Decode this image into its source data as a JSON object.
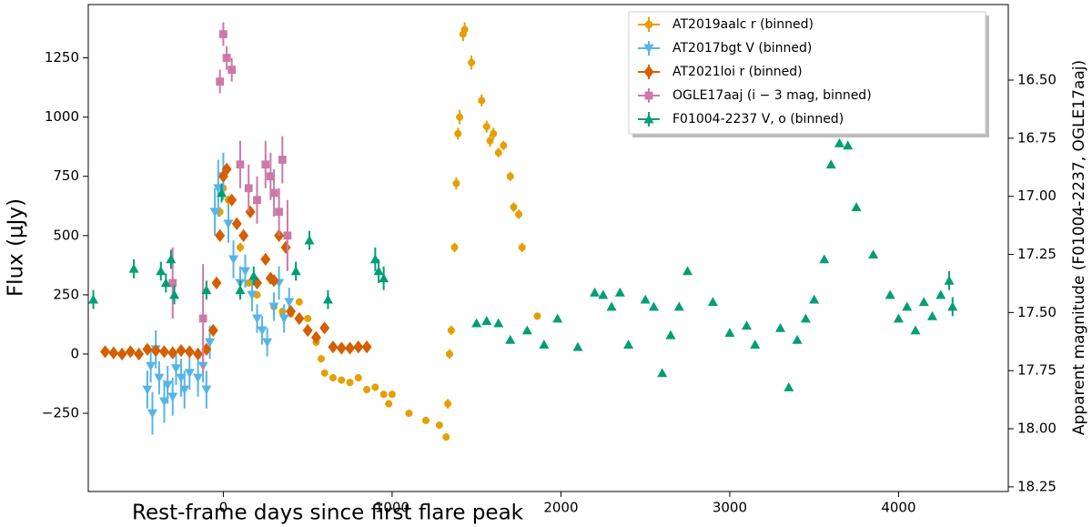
{
  "chart_data": {
    "type": "scatter",
    "x_label": "Rest-frame days since first flare peak",
    "y_label": "Flux (μJy)",
    "y2_label": "Apparent magnitude (F01004-2237, OGLE17aaj)",
    "xlim": [
      -800,
      4650
    ],
    "xticks": [
      0,
      1000,
      2000,
      3000,
      4000
    ],
    "ylim": [
      -580,
      1475
    ],
    "yticks": [
      {
        "value": -250,
        "label": "−250"
      },
      0,
      250,
      500,
      750,
      1000,
      1250
    ],
    "y2lim": [
      18.27,
      16.175
    ],
    "y2ticks": [
      {
        "value": 16.5,
        "label": "16.50"
      },
      16.75,
      {
        "value": 17,
        "label": "17.00"
      },
      17.25,
      {
        "value": 17.5,
        "label": "17.50"
      },
      17.75,
      {
        "value": 18,
        "label": "18.00"
      },
      18.25
    ],
    "legend": "upper right",
    "series": [
      {
        "name": "AT2019aalc r (binned)",
        "color": "#E69F00",
        "marker": "circle",
        "x": [
          -20,
          0,
          30,
          100,
          150,
          200,
          300,
          350,
          400,
          450,
          500,
          550,
          580,
          600,
          650,
          700,
          750,
          800,
          850,
          900,
          950,
          980,
          1000,
          1100,
          1200,
          1280,
          1320,
          1330,
          1340,
          1350,
          1370,
          1380,
          1390,
          1400,
          1420,
          1430,
          1470,
          1530,
          1560,
          1580,
          1600,
          1630,
          1660,
          1700,
          1720,
          1750,
          1770,
          1860
        ],
        "values": [
          600,
          700,
          650,
          450,
          300,
          250,
          200,
          180,
          170,
          220,
          150,
          50,
          -20,
          -80,
          -100,
          -110,
          -120,
          -100,
          -150,
          -140,
          -170,
          -210,
          -170,
          -250,
          -280,
          -300,
          -350,
          -210,
          0,
          100,
          450,
          720,
          930,
          1000,
          1350,
          1370,
          1230,
          1070,
          960,
          900,
          930,
          850,
          880,
          750,
          620,
          590,
          450,
          160
        ],
        "errors": [
          20,
          20,
          20,
          20,
          15,
          15,
          15,
          15,
          15,
          15,
          15,
          15,
          15,
          15,
          15,
          15,
          15,
          15,
          15,
          15,
          15,
          15,
          15,
          15,
          15,
          15,
          15,
          20,
          20,
          20,
          20,
          25,
          25,
          30,
          30,
          30,
          30,
          25,
          25,
          25,
          25,
          20,
          20,
          20,
          20,
          20,
          20,
          15
        ]
      },
      {
        "name": "AT2017bgt V (binned)",
        "color": "#56B4E9",
        "marker": "triangle-down",
        "x": [
          -450,
          -430,
          -420,
          -400,
          -380,
          -350,
          -330,
          -300,
          -280,
          -250,
          -230,
          -200,
          -150,
          -120,
          -100,
          -80,
          -50,
          -30,
          0,
          30,
          60,
          100,
          130,
          170,
          200,
          230,
          260,
          300,
          330,
          360,
          390
        ],
        "values": [
          -150,
          -50,
          -250,
          20,
          -100,
          -200,
          -130,
          -180,
          -60,
          -100,
          -150,
          -80,
          -100,
          -50,
          -150,
          50,
          600,
          700,
          750,
          550,
          400,
          300,
          350,
          250,
          150,
          100,
          50,
          200,
          300,
          150,
          220
        ],
        "errors": [
          80,
          70,
          90,
          80,
          70,
          90,
          80,
          80,
          70,
          80,
          80,
          70,
          80,
          70,
          80,
          70,
          100,
          120,
          100,
          80,
          80,
          70,
          70,
          70,
          60,
          60,
          60,
          60,
          70,
          60,
          60
        ]
      },
      {
        "name": "AT2021loi r (binned)",
        "color": "#D55E00",
        "marker": "diamond",
        "x": [
          -700,
          -650,
          -600,
          -550,
          -500,
          -450,
          -400,
          -350,
          -300,
          -250,
          -200,
          -150,
          -100,
          -60,
          -40,
          -20,
          0,
          20,
          50,
          80,
          120,
          160,
          200,
          250,
          280,
          300,
          330,
          370,
          400,
          450,
          500,
          550,
          600,
          650,
          700,
          750,
          800,
          850
        ],
        "values": [
          10,
          5,
          0,
          10,
          0,
          20,
          15,
          10,
          5,
          15,
          10,
          0,
          20,
          100,
          300,
          500,
          750,
          780,
          650,
          550,
          500,
          600,
          300,
          400,
          320,
          310,
          500,
          450,
          180,
          150,
          100,
          70,
          110,
          30,
          25,
          25,
          30,
          30
        ],
        "errors": [
          10,
          10,
          10,
          10,
          10,
          10,
          10,
          10,
          10,
          10,
          10,
          10,
          10,
          15,
          15,
          15,
          20,
          20,
          15,
          15,
          15,
          15,
          15,
          15,
          15,
          15,
          15,
          15,
          10,
          10,
          10,
          10,
          10,
          10,
          10,
          10,
          10,
          10
        ]
      },
      {
        "name": "OGLE17aaj (i − 3 mag, binned)",
        "color": "#CC79A7",
        "marker": "square",
        "x": [
          -300,
          -120,
          -20,
          0,
          20,
          50,
          100,
          150,
          200,
          250,
          280,
          300,
          330,
          350,
          380
        ],
        "values": [
          300,
          150,
          1150,
          1350,
          1250,
          1200,
          800,
          700,
          650,
          800,
          750,
          680,
          600,
          820,
          500
        ],
        "errors": [
          150,
          230,
          50,
          50,
          50,
          50,
          100,
          100,
          100,
          100,
          100,
          100,
          100,
          100,
          150
        ]
      },
      {
        "name": "F01004-2237 V, o (binned)",
        "color": "#009E73",
        "marker": "triangle-up",
        "x": [
          -770,
          -530,
          -370,
          -340,
          -310,
          -290,
          -100,
          -10,
          100,
          180,
          430,
          510,
          620,
          900,
          920,
          950,
          1500,
          1560,
          1630,
          1700,
          1800,
          1900,
          1980,
          2100,
          2200,
          2250,
          2300,
          2350,
          2400,
          2500,
          2550,
          2600,
          2650,
          2700,
          2750,
          2900,
          3000,
          3100,
          3150,
          3300,
          3350,
          3400,
          3450,
          3500,
          3560,
          3600,
          3650,
          3700,
          3750,
          3850,
          3950,
          4000,
          4050,
          4100,
          4150,
          4200,
          4250,
          4300,
          4320
        ],
        "values": [
          230,
          360,
          350,
          300,
          400,
          250,
          270,
          680,
          270,
          330,
          350,
          480,
          230,
          400,
          350,
          320,
          130,
          140,
          130,
          60,
          100,
          40,
          150,
          30,
          260,
          250,
          200,
          260,
          40,
          230,
          200,
          -80,
          80,
          200,
          350,
          220,
          90,
          120,
          40,
          110,
          -140,
          60,
          150,
          230,
          400,
          800,
          890,
          880,
          620,
          420,
          250,
          150,
          200,
          100,
          220,
          160,
          250,
          310,
          200
        ],
        "errors": [
          40,
          40,
          40,
          40,
          40,
          40,
          40,
          40,
          40,
          40,
          40,
          40,
          40,
          50,
          50,
          50,
          10,
          10,
          10,
          10,
          10,
          10,
          10,
          10,
          10,
          10,
          10,
          10,
          10,
          10,
          10,
          10,
          10,
          10,
          10,
          10,
          10,
          10,
          10,
          10,
          10,
          10,
          10,
          10,
          10,
          10,
          10,
          10,
          10,
          10,
          10,
          10,
          10,
          10,
          10,
          10,
          10,
          40,
          40
        ]
      }
    ]
  }
}
